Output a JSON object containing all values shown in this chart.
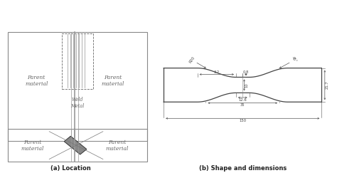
{
  "bg_color": "#ffffff",
  "line_color": "#777777",
  "dark_line": "#555555",
  "text_color": "#666666",
  "fig_width": 4.74,
  "fig_height": 2.43,
  "caption_a": "(a) Location",
  "caption_b": "(b) Shape and dimensions",
  "label_parent_material": "Parent\nmaterial",
  "label_weld_metal": "Weld\nMetal",
  "dim_R20": "R20",
  "dim_32": "3.2",
  "dim_08": "0.8",
  "dim_45": "45°",
  "dim_10": "10",
  "dim_126": "12.6",
  "dim_35": "35",
  "dim_150": "150",
  "dim_217": "21.7"
}
